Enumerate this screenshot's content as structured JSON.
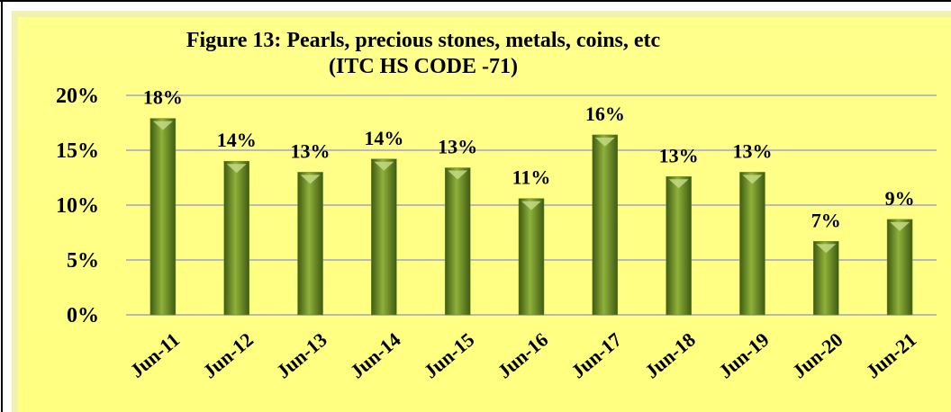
{
  "chart_data": {
    "type": "bar",
    "title": "Figure 13: Pearls, precious stones, metals, coins, etc",
    "subtitle": "(ITC HS CODE -71)",
    "categories": [
      "Jun-11",
      "Jun-12",
      "Jun-13",
      "Jun-14",
      "Jun-15",
      "Jun-16",
      "Jun-17",
      "Jun-18",
      "Jun-19",
      "Jun-20",
      "Jun-21"
    ],
    "values": [
      17.9,
      14.0,
      13.0,
      14.2,
      13.4,
      10.6,
      16.4,
      12.6,
      13.0,
      6.7,
      8.7
    ],
    "value_labels": [
      "18%",
      "14%",
      "13%",
      "14%",
      "13%",
      "11%",
      "16%",
      "13%",
      "13%",
      "7%",
      "9%"
    ],
    "color": "#6b8e23",
    "ylim": [
      0,
      20
    ],
    "yticks": [
      {
        "value": 0,
        "label": "0%"
      },
      {
        "value": 5,
        "label": "5%"
      },
      {
        "value": 10,
        "label": "10%"
      },
      {
        "value": 15,
        "label": "15%"
      },
      {
        "value": 20,
        "label": "20%"
      }
    ],
    "grid": true
  }
}
